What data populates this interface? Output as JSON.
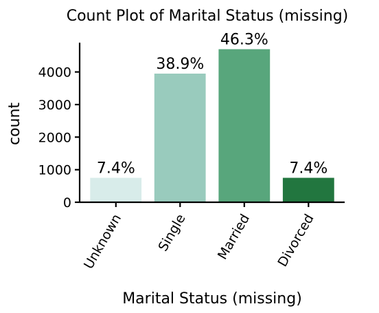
{
  "chart_data": {
    "type": "bar",
    "title": "Count Plot of Marital Status (missing)",
    "xlabel": "Marital Status (missing)",
    "ylabel": "count",
    "categories": [
      "Unknown",
      "Single",
      "Married",
      "Divorced"
    ],
    "values": [
      750,
      3950,
      4700,
      750
    ],
    "data_labels": [
      "7.4%",
      "38.9%",
      "46.3%",
      "7.4%"
    ],
    "colors": [
      "#d8ecea",
      "#99cbbd",
      "#58a67c",
      "#22763f"
    ],
    "ylim": [
      0,
      4900
    ],
    "yticks": [
      0,
      1000,
      2000,
      3000,
      4000
    ],
    "ytick_labels": [
      "0",
      "1000",
      "2000",
      "3000",
      "4000"
    ],
    "grid": false,
    "legend": "none",
    "xtick_rotation": "60 degrees"
  }
}
